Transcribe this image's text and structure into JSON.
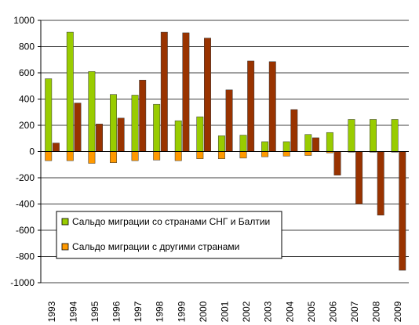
{
  "chart_data": {
    "type": "bar",
    "categories": [
      "1993",
      "1994",
      "1995",
      "1996",
      "1997",
      "1998",
      "1999",
      "2000",
      "2001",
      "2002",
      "2003",
      "2004",
      "2005",
      "2006",
      "2007",
      "2008",
      "2009"
    ],
    "series": [
      {
        "name": "Сальдо миграции со странами СНГ и Балтии",
        "color": "#99cc00",
        "values": [
          555,
          910,
          610,
          435,
          430,
          360,
          235,
          265,
          120,
          125,
          75,
          75,
          130,
          145,
          245,
          245,
          245
        ]
      },
      {
        "name": "Сальдо миграции с другими странами",
        "color": "#ff9900",
        "values": [
          -70,
          -70,
          -90,
          -85,
          -70,
          -65,
          -70,
          -55,
          -55,
          -50,
          -40,
          -35,
          -30,
          -10,
          -5,
          -5,
          -5
        ]
      },
      {
        "name": "",
        "color": "#993300",
        "values": [
          65,
          370,
          210,
          255,
          545,
          910,
          905,
          865,
          470,
          690,
          685,
          320,
          105,
          -180,
          -400,
          -485,
          -905
        ]
      }
    ],
    "yticks": [
      "1000",
      "800",
      "600",
      "400",
      "200",
      "0",
      "-200",
      "-400",
      "-600",
      "-800",
      "-1000"
    ],
    "ylim": [
      -1000,
      1000
    ],
    "grid": true,
    "legend_position": "bottom-left",
    "title": "",
    "xlabel": "",
    "ylabel": ""
  }
}
